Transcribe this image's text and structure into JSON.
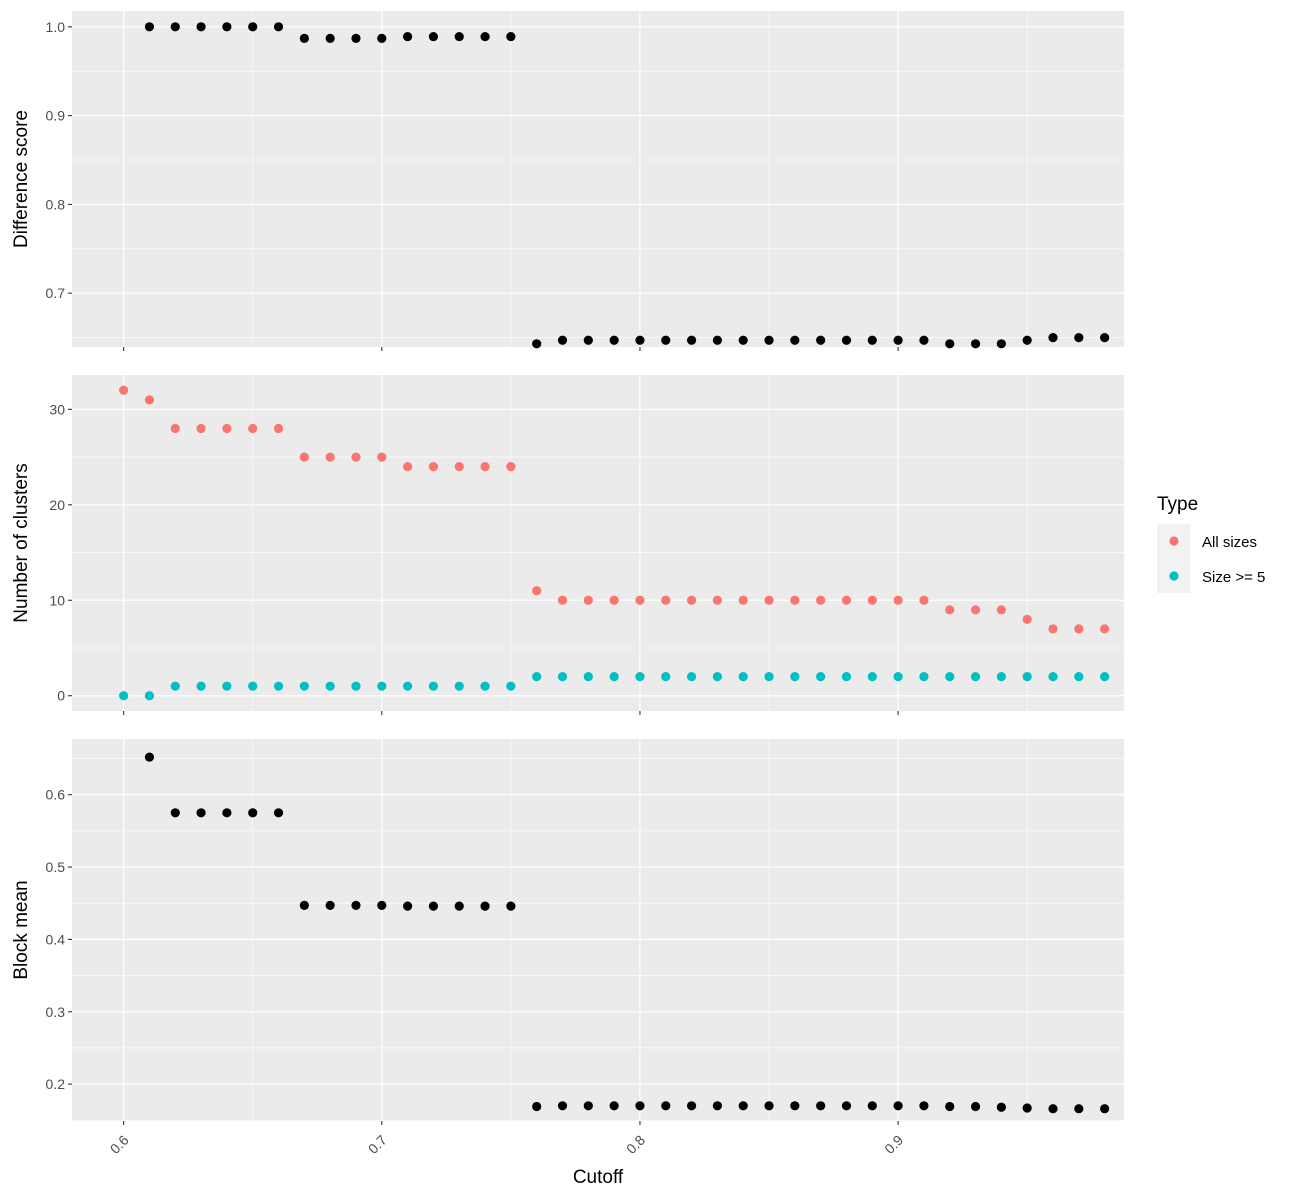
{
  "chart_data": {
    "type": "scatter",
    "x_title": "Cutoff",
    "x_ticks": [
      "0.6",
      "0.7",
      "0.8",
      "0.9"
    ],
    "x_tick_values": [
      0.6,
      0.7,
      0.8,
      0.9
    ],
    "x_range": [
      0.58,
      0.9875
    ],
    "grid": true,
    "panel_background": "#ebebeb",
    "grid_color": "#ffffff",
    "panels": [
      {
        "ylabel": "Difference score",
        "ylim": [
          0.6394,
          1.0178
        ],
        "y_ticks": [
          "0.7",
          "0.8",
          "0.9",
          "1.0"
        ],
        "y_tick_values": [
          0.7,
          0.8,
          0.9,
          1.0
        ],
        "series": [
          {
            "color": "#000000",
            "x": [
              0.61,
              0.62,
              0.63,
              0.64,
              0.65,
              0.66,
              0.67,
              0.68,
              0.69,
              0.7,
              0.71,
              0.72,
              0.73,
              0.74,
              0.75,
              0.76,
              0.77,
              0.78,
              0.79,
              0.8,
              0.81,
              0.82,
              0.83,
              0.84,
              0.85,
              0.86,
              0.87,
              0.88,
              0.89,
              0.9,
              0.91,
              0.92,
              0.93,
              0.94,
              0.95,
              0.96,
              0.97,
              0.98
            ],
            "y": [
              1.0,
              1.0,
              1.0,
              1.0,
              1.0,
              1.0,
              0.987,
              0.987,
              0.987,
              0.987,
              0.989,
              0.989,
              0.989,
              0.989,
              0.989,
              0.643,
              0.647,
              0.647,
              0.647,
              0.647,
              0.647,
              0.647,
              0.647,
              0.647,
              0.647,
              0.647,
              0.647,
              0.647,
              0.647,
              0.647,
              0.647,
              0.643,
              0.643,
              0.643,
              0.647,
              0.65,
              0.65,
              0.65
            ]
          }
        ]
      },
      {
        "ylabel": "Number of clusters",
        "ylim": [
          -1.6,
          33.6
        ],
        "y_ticks": [
          "0",
          "10",
          "20",
          "30"
        ],
        "y_tick_values": [
          0,
          10,
          20,
          30
        ],
        "series": [
          {
            "name": "All sizes",
            "color": "#f8766d",
            "x": [
              0.6,
              0.61,
              0.62,
              0.63,
              0.64,
              0.65,
              0.66,
              0.67,
              0.68,
              0.69,
              0.7,
              0.71,
              0.72,
              0.73,
              0.74,
              0.75,
              0.76,
              0.77,
              0.78,
              0.79,
              0.8,
              0.81,
              0.82,
              0.83,
              0.84,
              0.85,
              0.86,
              0.87,
              0.88,
              0.89,
              0.9,
              0.91,
              0.92,
              0.93,
              0.94,
              0.95,
              0.96,
              0.97,
              0.98
            ],
            "y": [
              32,
              31,
              28,
              28,
              28,
              28,
              28,
              25,
              25,
              25,
              25,
              24,
              24,
              24,
              24,
              24,
              11,
              10,
              10,
              10,
              10,
              10,
              10,
              10,
              10,
              10,
              10,
              10,
              10,
              10,
              10,
              10,
              9,
              9,
              9,
              8,
              7,
              7,
              7
            ]
          },
          {
            "name": "Size >= 5",
            "color": "#00bfc4",
            "x": [
              0.6,
              0.61,
              0.62,
              0.63,
              0.64,
              0.65,
              0.66,
              0.67,
              0.68,
              0.69,
              0.7,
              0.71,
              0.72,
              0.73,
              0.74,
              0.75,
              0.76,
              0.77,
              0.78,
              0.79,
              0.8,
              0.81,
              0.82,
              0.83,
              0.84,
              0.85,
              0.86,
              0.87,
              0.88,
              0.89,
              0.9,
              0.91,
              0.92,
              0.93,
              0.94,
              0.95,
              0.96,
              0.97,
              0.98
            ],
            "y": [
              0,
              0,
              1,
              1,
              1,
              1,
              1,
              1,
              1,
              1,
              1,
              1,
              1,
              1,
              1,
              1,
              2,
              2,
              2,
              2,
              2,
              2,
              2,
              2,
              2,
              2,
              2,
              2,
              2,
              2,
              2,
              2,
              2,
              2,
              2,
              2,
              2,
              2,
              2
            ]
          }
        ]
      },
      {
        "ylabel": "Block mean",
        "ylim": [
          0.149,
          0.677
        ],
        "y_ticks": [
          "0.2",
          "0.3",
          "0.4",
          "0.5",
          "0.6"
        ],
        "y_tick_values": [
          0.2,
          0.3,
          0.4,
          0.5,
          0.6
        ],
        "series": [
          {
            "color": "#000000",
            "x": [
              0.61,
              0.62,
              0.63,
              0.64,
              0.65,
              0.66,
              0.67,
              0.68,
              0.69,
              0.7,
              0.71,
              0.72,
              0.73,
              0.74,
              0.75,
              0.76,
              0.77,
              0.78,
              0.79,
              0.8,
              0.81,
              0.82,
              0.83,
              0.84,
              0.85,
              0.86,
              0.87,
              0.88,
              0.89,
              0.9,
              0.91,
              0.92,
              0.93,
              0.94,
              0.95,
              0.96,
              0.97,
              0.98
            ],
            "y": [
              0.652,
              0.575,
              0.575,
              0.575,
              0.575,
              0.575,
              0.447,
              0.447,
              0.447,
              0.447,
              0.446,
              0.446,
              0.446,
              0.446,
              0.446,
              0.169,
              0.17,
              0.17,
              0.17,
              0.17,
              0.17,
              0.17,
              0.17,
              0.17,
              0.17,
              0.17,
              0.17,
              0.17,
              0.17,
              0.17,
              0.17,
              0.169,
              0.169,
              0.168,
              0.167,
              0.166,
              0.166,
              0.166
            ]
          }
        ]
      }
    ],
    "legend": {
      "title": "Type",
      "position": "right",
      "items": [
        {
          "label": "All sizes",
          "color": "#f8766d"
        },
        {
          "label": "Size >= 5",
          "color": "#00bfc4"
        }
      ]
    }
  }
}
